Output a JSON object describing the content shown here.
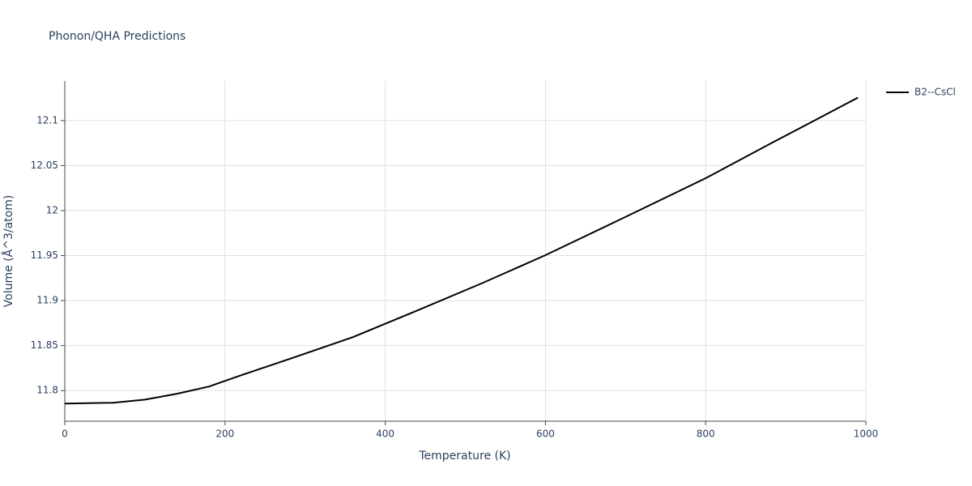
{
  "chart_data": {
    "type": "line",
    "title": "Phonon/QHA Predictions",
    "x_label": "Temperature (K)",
    "y_label": "Volume (Å^3/atom)",
    "x": [
      0,
      60,
      100,
      140,
      180,
      220,
      280,
      360,
      440,
      520,
      600,
      700,
      800,
      880,
      990
    ],
    "series": [
      {
        "name": "B2--CsCl",
        "color": "#000000",
        "values": [
          11.7856,
          11.7865,
          11.79,
          11.7965,
          11.8045,
          11.817,
          11.835,
          11.8595,
          11.889,
          11.919,
          11.9505,
          11.993,
          12.036,
          12.074,
          12.1255
        ]
      }
    ],
    "xlim": [
      0,
      1000
    ],
    "xticks": [
      0,
      200,
      400,
      600,
      800,
      1000
    ],
    "ylim": [
      11.766,
      12.144
    ],
    "yticks": [
      11.8,
      11.85,
      11.9,
      11.95,
      12,
      12.05,
      12.1
    ],
    "grid": true,
    "legend": "right"
  }
}
